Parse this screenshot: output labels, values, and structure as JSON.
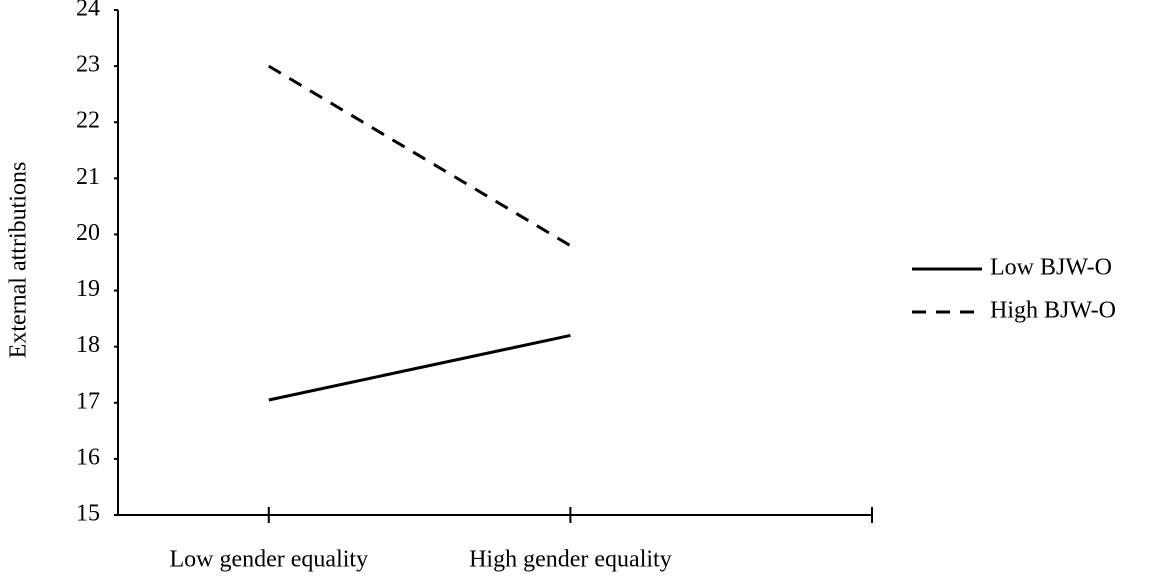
{
  "chart_data": {
    "type": "line",
    "y_label": "External attributions",
    "categories": [
      "Low gender equality",
      "High gender equality"
    ],
    "series": [
      {
        "name": "Low BJW-O",
        "color": "#000000",
        "dash": "solid",
        "values": [
          17.05,
          18.2
        ]
      },
      {
        "name": "High BJW-O",
        "color": "#000000",
        "dash": "dashed",
        "values": [
          23,
          19.8
        ]
      }
    ],
    "ylim": [
      15,
      24
    ],
    "yticks": [
      15,
      16,
      17,
      18,
      19,
      20,
      21,
      22,
      23,
      24
    ],
    "grid": false,
    "legend": "right"
  }
}
